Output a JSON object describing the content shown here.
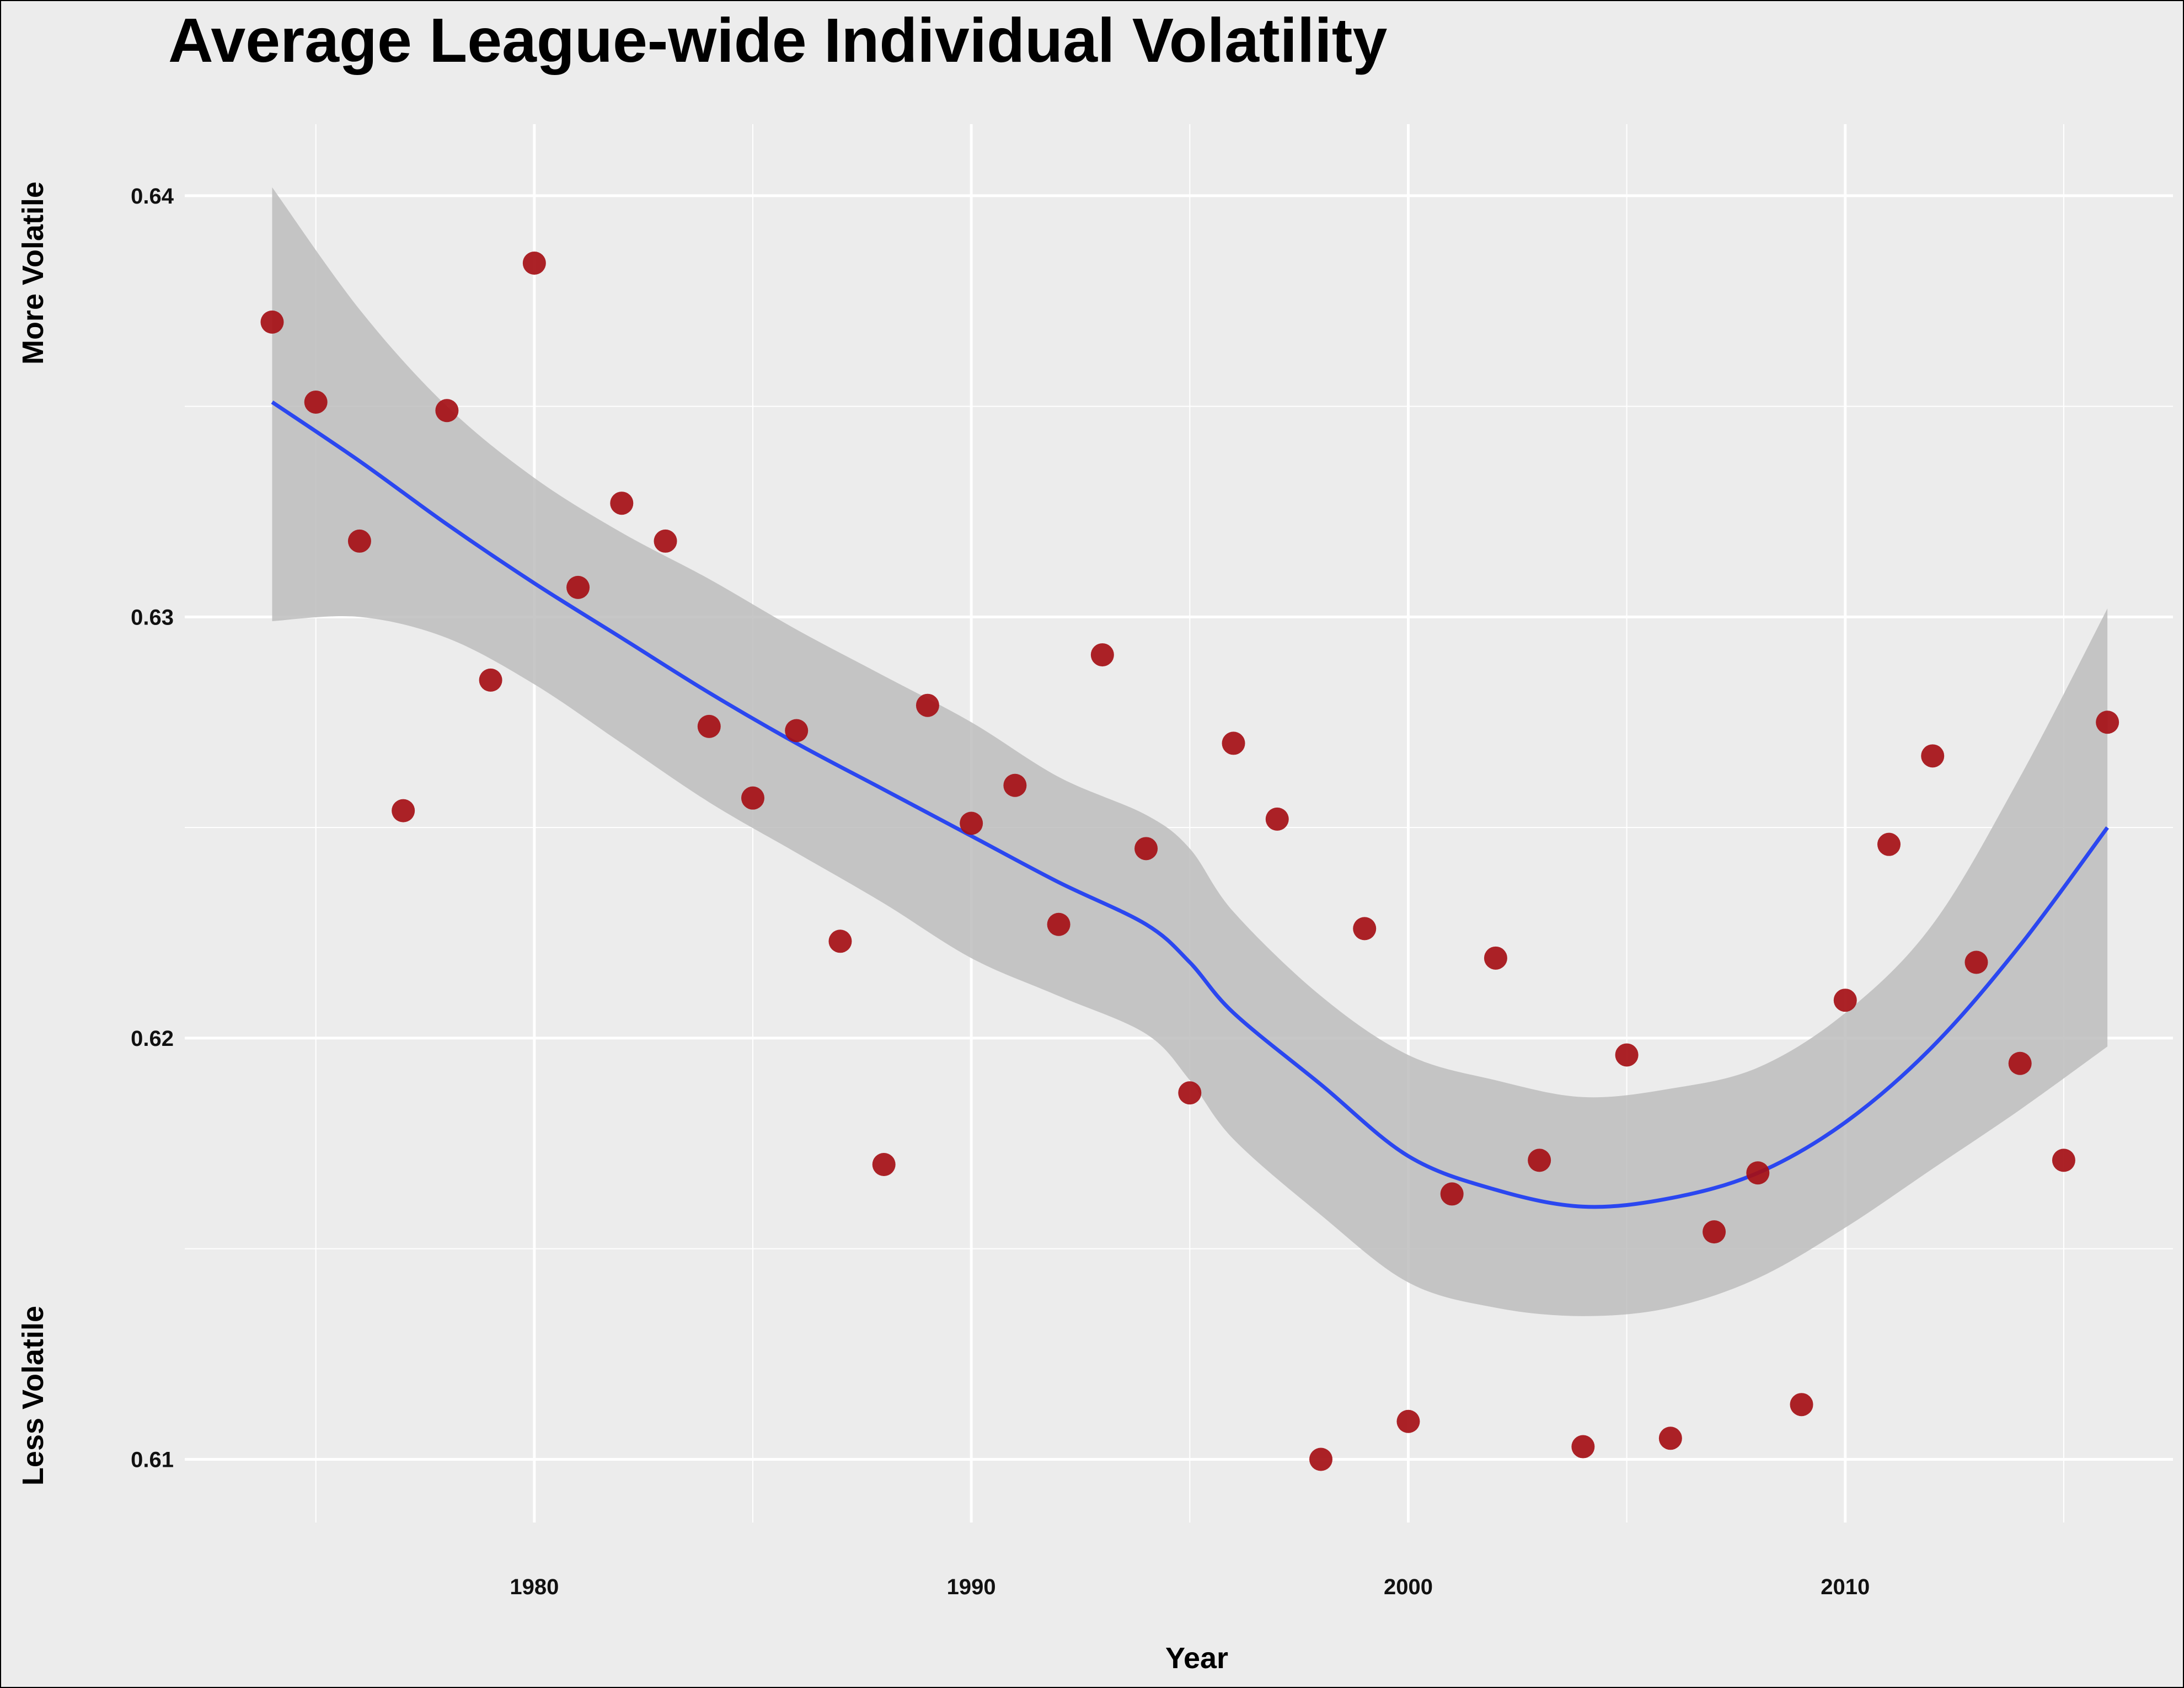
{
  "chart_data": {
    "type": "scatter",
    "title": "Average League-wide Individual Volatility",
    "xlabel": "Year",
    "ylabel_top": "More Volatile",
    "ylabel_bottom": "Less Volatile",
    "xlim": [
      1972,
      2017.5
    ],
    "ylim": [
      0.6085,
      0.6417
    ],
    "x_ticks": [
      1980,
      1990,
      2000,
      2010
    ],
    "x_tick_labels": [
      "1980",
      "1990",
      "2000",
      "2010"
    ],
    "y_ticks": [
      0.61,
      0.62,
      0.63,
      0.64
    ],
    "y_tick_labels": [
      "0.61",
      "0.62",
      "0.63",
      "0.64"
    ],
    "grid": true,
    "colors": {
      "points": "#a50f15",
      "smooth": "#2b47f0",
      "band": "#bdbdbd",
      "background": "#ececec",
      "grid": "#ffffff"
    },
    "points": [
      {
        "x": 1974,
        "y": 0.637
      },
      {
        "x": 1975,
        "y": 0.6351
      },
      {
        "x": 1976,
        "y": 0.6318
      },
      {
        "x": 1977,
        "y": 0.6254
      },
      {
        "x": 1978,
        "y": 0.6349
      },
      {
        "x": 1979,
        "y": 0.6285
      },
      {
        "x": 1980,
        "y": 0.6384
      },
      {
        "x": 1981,
        "y": 0.6307
      },
      {
        "x": 1982,
        "y": 0.6327
      },
      {
        "x": 1983,
        "y": 0.6318
      },
      {
        "x": 1984,
        "y": 0.6274
      },
      {
        "x": 1985,
        "y": 0.6257
      },
      {
        "x": 1986,
        "y": 0.6273
      },
      {
        "x": 1987,
        "y": 0.6223
      },
      {
        "x": 1988,
        "y": 0.617
      },
      {
        "x": 1989,
        "y": 0.6279
      },
      {
        "x": 1990,
        "y": 0.6251
      },
      {
        "x": 1991,
        "y": 0.626
      },
      {
        "x": 1992,
        "y": 0.6227
      },
      {
        "x": 1993,
        "y": 0.6291
      },
      {
        "x": 1994,
        "y": 0.6245
      },
      {
        "x": 1995,
        "y": 0.6187
      },
      {
        "x": 1996,
        "y": 0.627
      },
      {
        "x": 1997,
        "y": 0.6252
      },
      {
        "x": 1998,
        "y": 0.61
      },
      {
        "x": 1999,
        "y": 0.6226
      },
      {
        "x": 2000,
        "y": 0.6109
      },
      {
        "x": 2001,
        "y": 0.6163
      },
      {
        "x": 2002,
        "y": 0.6219
      },
      {
        "x": 2003,
        "y": 0.6171
      },
      {
        "x": 2004,
        "y": 0.6103
      },
      {
        "x": 2005,
        "y": 0.6196
      },
      {
        "x": 2006,
        "y": 0.6105
      },
      {
        "x": 2007,
        "y": 0.6154
      },
      {
        "x": 2008,
        "y": 0.6168
      },
      {
        "x": 2009,
        "y": 0.6113
      },
      {
        "x": 2010,
        "y": 0.6209
      },
      {
        "x": 2011,
        "y": 0.6246
      },
      {
        "x": 2012,
        "y": 0.6267
      },
      {
        "x": 2013,
        "y": 0.6218
      },
      {
        "x": 2014,
        "y": 0.6194
      },
      {
        "x": 2015,
        "y": 0.6171
      },
      {
        "x": 2016,
        "y": 0.6275
      }
    ],
    "smooth": {
      "x": [
        1974,
        1976,
        1978,
        1980,
        1982,
        1984,
        1986,
        1988,
        1990,
        1992,
        1994,
        1995,
        1996,
        1998,
        2000,
        2002,
        2004,
        2006,
        2008,
        2010,
        2012,
        2014,
        2016
      ],
      "y": [
        0.6351,
        0.6337,
        0.6322,
        0.6308,
        0.6295,
        0.6282,
        0.627,
        0.6259,
        0.6248,
        0.6237,
        0.6227,
        0.6218,
        0.6206,
        0.6189,
        0.6172,
        0.6164,
        0.616,
        0.6162,
        0.6168,
        0.618,
        0.6198,
        0.6222,
        0.625
      ],
      "upper": [
        0.6402,
        0.6373,
        0.635,
        0.6333,
        0.632,
        0.6309,
        0.6297,
        0.6286,
        0.6275,
        0.6262,
        0.6253,
        0.6245,
        0.623,
        0.621,
        0.6196,
        0.619,
        0.6186,
        0.6188,
        0.6193,
        0.6206,
        0.6227,
        0.6262,
        0.6302
      ],
      "lower": [
        0.6299,
        0.63,
        0.6295,
        0.6284,
        0.627,
        0.6256,
        0.6244,
        0.6232,
        0.6219,
        0.621,
        0.6201,
        0.619,
        0.6176,
        0.6158,
        0.6142,
        0.6136,
        0.6134,
        0.6136,
        0.6143,
        0.6155,
        0.6169,
        0.6183,
        0.6198
      ]
    }
  }
}
